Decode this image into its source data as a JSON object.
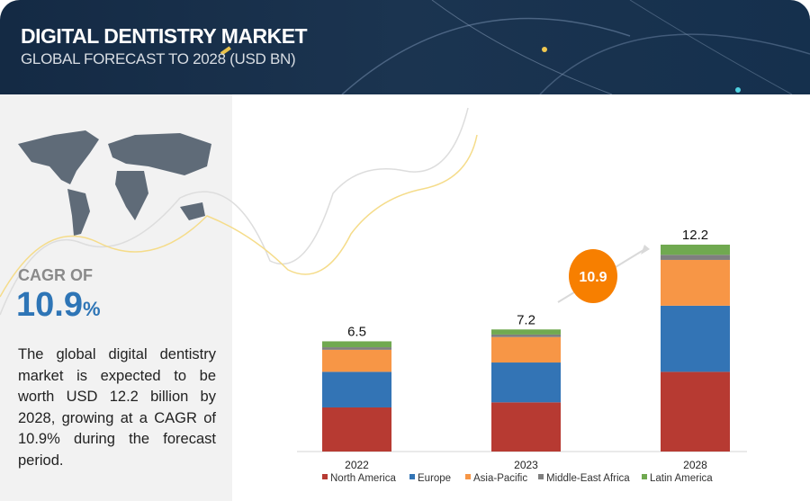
{
  "header": {
    "title": "DIGITAL DENTISTRY MARKET",
    "subtitle": "GLOBAL FORECAST TO 2028 (USD BN)"
  },
  "sidebar": {
    "cagr_label": "CAGR OF",
    "cagr_value": "10.9",
    "cagr_unit": "%",
    "description": "The global digital dentistry market is expected to be worth USD 12.2 billion by 2028, growing at a CAGR of 10.9% during the forecast period.",
    "map_icon": "world-map-icon"
  },
  "chart_data": {
    "type": "bar",
    "stacked": true,
    "categories": [
      "2022",
      "2023",
      "2028"
    ],
    "totals": [
      "6.5",
      "7.2",
      "12.2"
    ],
    "cagr_badge": "10.9",
    "series": [
      {
        "name": "North America",
        "color": "#b73a32",
        "values": [
          2.6,
          2.9,
          4.7
        ]
      },
      {
        "name": "Europe",
        "color": "#3374b5",
        "values": [
          2.1,
          2.35,
          3.9
        ]
      },
      {
        "name": "Asia-Pacific",
        "color": "#f79646",
        "values": [
          1.3,
          1.5,
          2.7
        ]
      },
      {
        "name": "Middle-East Africa",
        "color": "#7f7f7f",
        "values": [
          0.15,
          0.15,
          0.3
        ]
      },
      {
        "name": "Latin America",
        "color": "#70a950",
        "values": [
          0.35,
          0.3,
          0.6
        ]
      }
    ],
    "ylim": [
      0,
      12.2
    ],
    "grid": false,
    "legend": "bottom",
    "badge_color": "#f77f00"
  }
}
